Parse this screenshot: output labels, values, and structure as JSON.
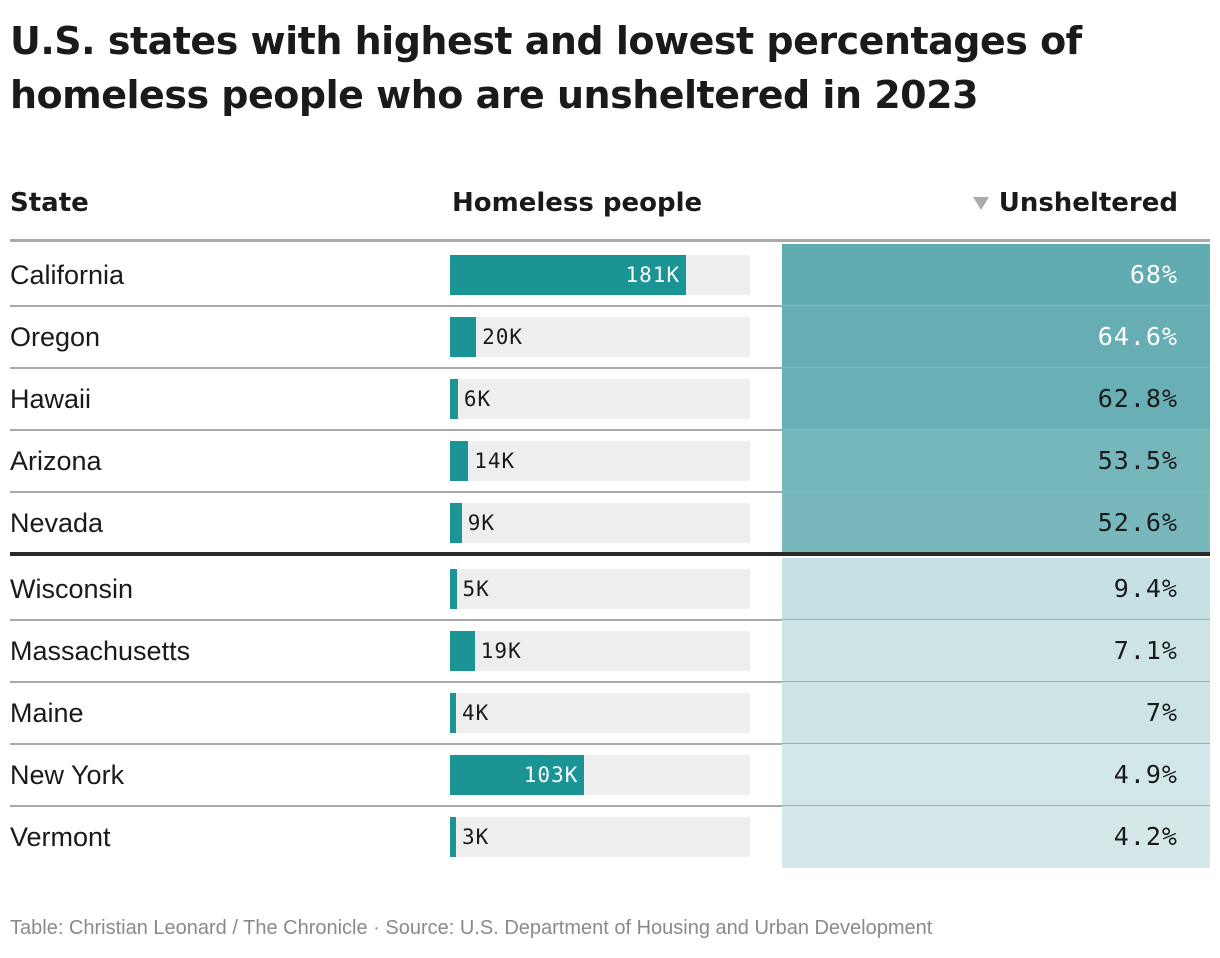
{
  "title": "U.S. states with highest and lowest percentages of homeless people who are unsheltered in 2023",
  "columns": {
    "state": "State",
    "homeless": "Homeless people",
    "unsheltered": "Unsheltered"
  },
  "colors": {
    "bar": "#1a9494",
    "bar_track": "#eeeeee",
    "heat_high": "#5eaab0",
    "heat_low": "#e4f1f2",
    "divider": "#2a2a2a"
  },
  "chart_data": {
    "type": "table",
    "title": "U.S. states with highest and lowest percentages of homeless people who are unsheltered in 2023",
    "sort": {
      "column": "Unsheltered",
      "order": "descending"
    },
    "bar_max": 230,
    "rows": [
      {
        "state": "California",
        "homeless": 181,
        "homeless_label": "181K",
        "unsheltered": 68,
        "unsheltered_label": "68%",
        "group": "highest"
      },
      {
        "state": "Oregon",
        "homeless": 20,
        "homeless_label": "20K",
        "unsheltered": 64.6,
        "unsheltered_label": "64.6%",
        "group": "highest"
      },
      {
        "state": "Hawaii",
        "homeless": 6,
        "homeless_label": "6K",
        "unsheltered": 62.8,
        "unsheltered_label": "62.8%",
        "group": "highest"
      },
      {
        "state": "Arizona",
        "homeless": 14,
        "homeless_label": "14K",
        "unsheltered": 53.5,
        "unsheltered_label": "53.5%",
        "group": "highest"
      },
      {
        "state": "Nevada",
        "homeless": 9,
        "homeless_label": "9K",
        "unsheltered": 52.6,
        "unsheltered_label": "52.6%",
        "group": "highest"
      },
      {
        "state": "Wisconsin",
        "homeless": 5,
        "homeless_label": "5K",
        "unsheltered": 9.4,
        "unsheltered_label": "9.4%",
        "group": "lowest"
      },
      {
        "state": "Massachusetts",
        "homeless": 19,
        "homeless_label": "19K",
        "unsheltered": 7.1,
        "unsheltered_label": "7.1%",
        "group": "lowest"
      },
      {
        "state": "Maine",
        "homeless": 4,
        "homeless_label": "4K",
        "unsheltered": 7,
        "unsheltered_label": "7%",
        "group": "lowest"
      },
      {
        "state": "New York",
        "homeless": 103,
        "homeless_label": "103K",
        "unsheltered": 4.9,
        "unsheltered_label": "4.9%",
        "group": "lowest"
      },
      {
        "state": "Vermont",
        "homeless": 3,
        "homeless_label": "3K",
        "unsheltered": 4.2,
        "unsheltered_label": "4.2%",
        "group": "lowest"
      }
    ]
  },
  "footer": "Table: Christian Leonard / The Chronicle · Source: U.S. Department of Housing and Urban Development"
}
